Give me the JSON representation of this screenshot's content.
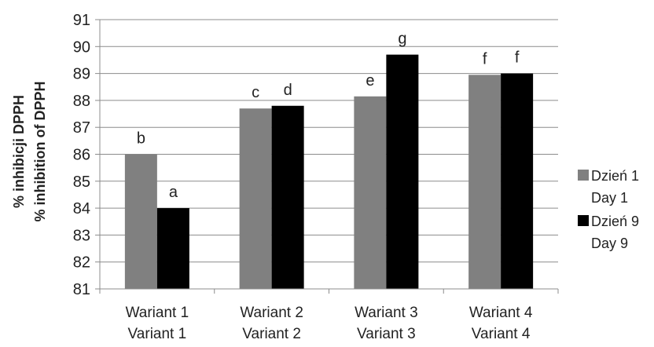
{
  "chart_data": {
    "type": "bar",
    "categories": [
      [
        "Wariant 1",
        "Variant 1"
      ],
      [
        "Wariant 2",
        "Variant 2"
      ],
      [
        "Wariant 3",
        "Variant 3"
      ],
      [
        "Wariant 4",
        "Variant 4"
      ]
    ],
    "series": [
      {
        "name": [
          "Dzień 1",
          "Day 1"
        ],
        "color": "#808080",
        "values": [
          86.0,
          87.7,
          88.15,
          88.95
        ],
        "labels": [
          "b",
          "c",
          "e",
          "f"
        ]
      },
      {
        "name": [
          "Dzień 9",
          "Day 9"
        ],
        "color": "#000000",
        "values": [
          84.0,
          87.8,
          89.7,
          89.0
        ],
        "labels": [
          "a",
          "d",
          "g",
          "f"
        ]
      }
    ],
    "ylabel": [
      "% inhibicji DPPH",
      "% inhibition of DPPH"
    ],
    "xlabel": "",
    "ylim": [
      81,
      91
    ],
    "yticks": [
      81,
      82,
      83,
      84,
      85,
      86,
      87,
      88,
      89,
      90,
      91
    ],
    "grid": true,
    "legend": "right"
  }
}
